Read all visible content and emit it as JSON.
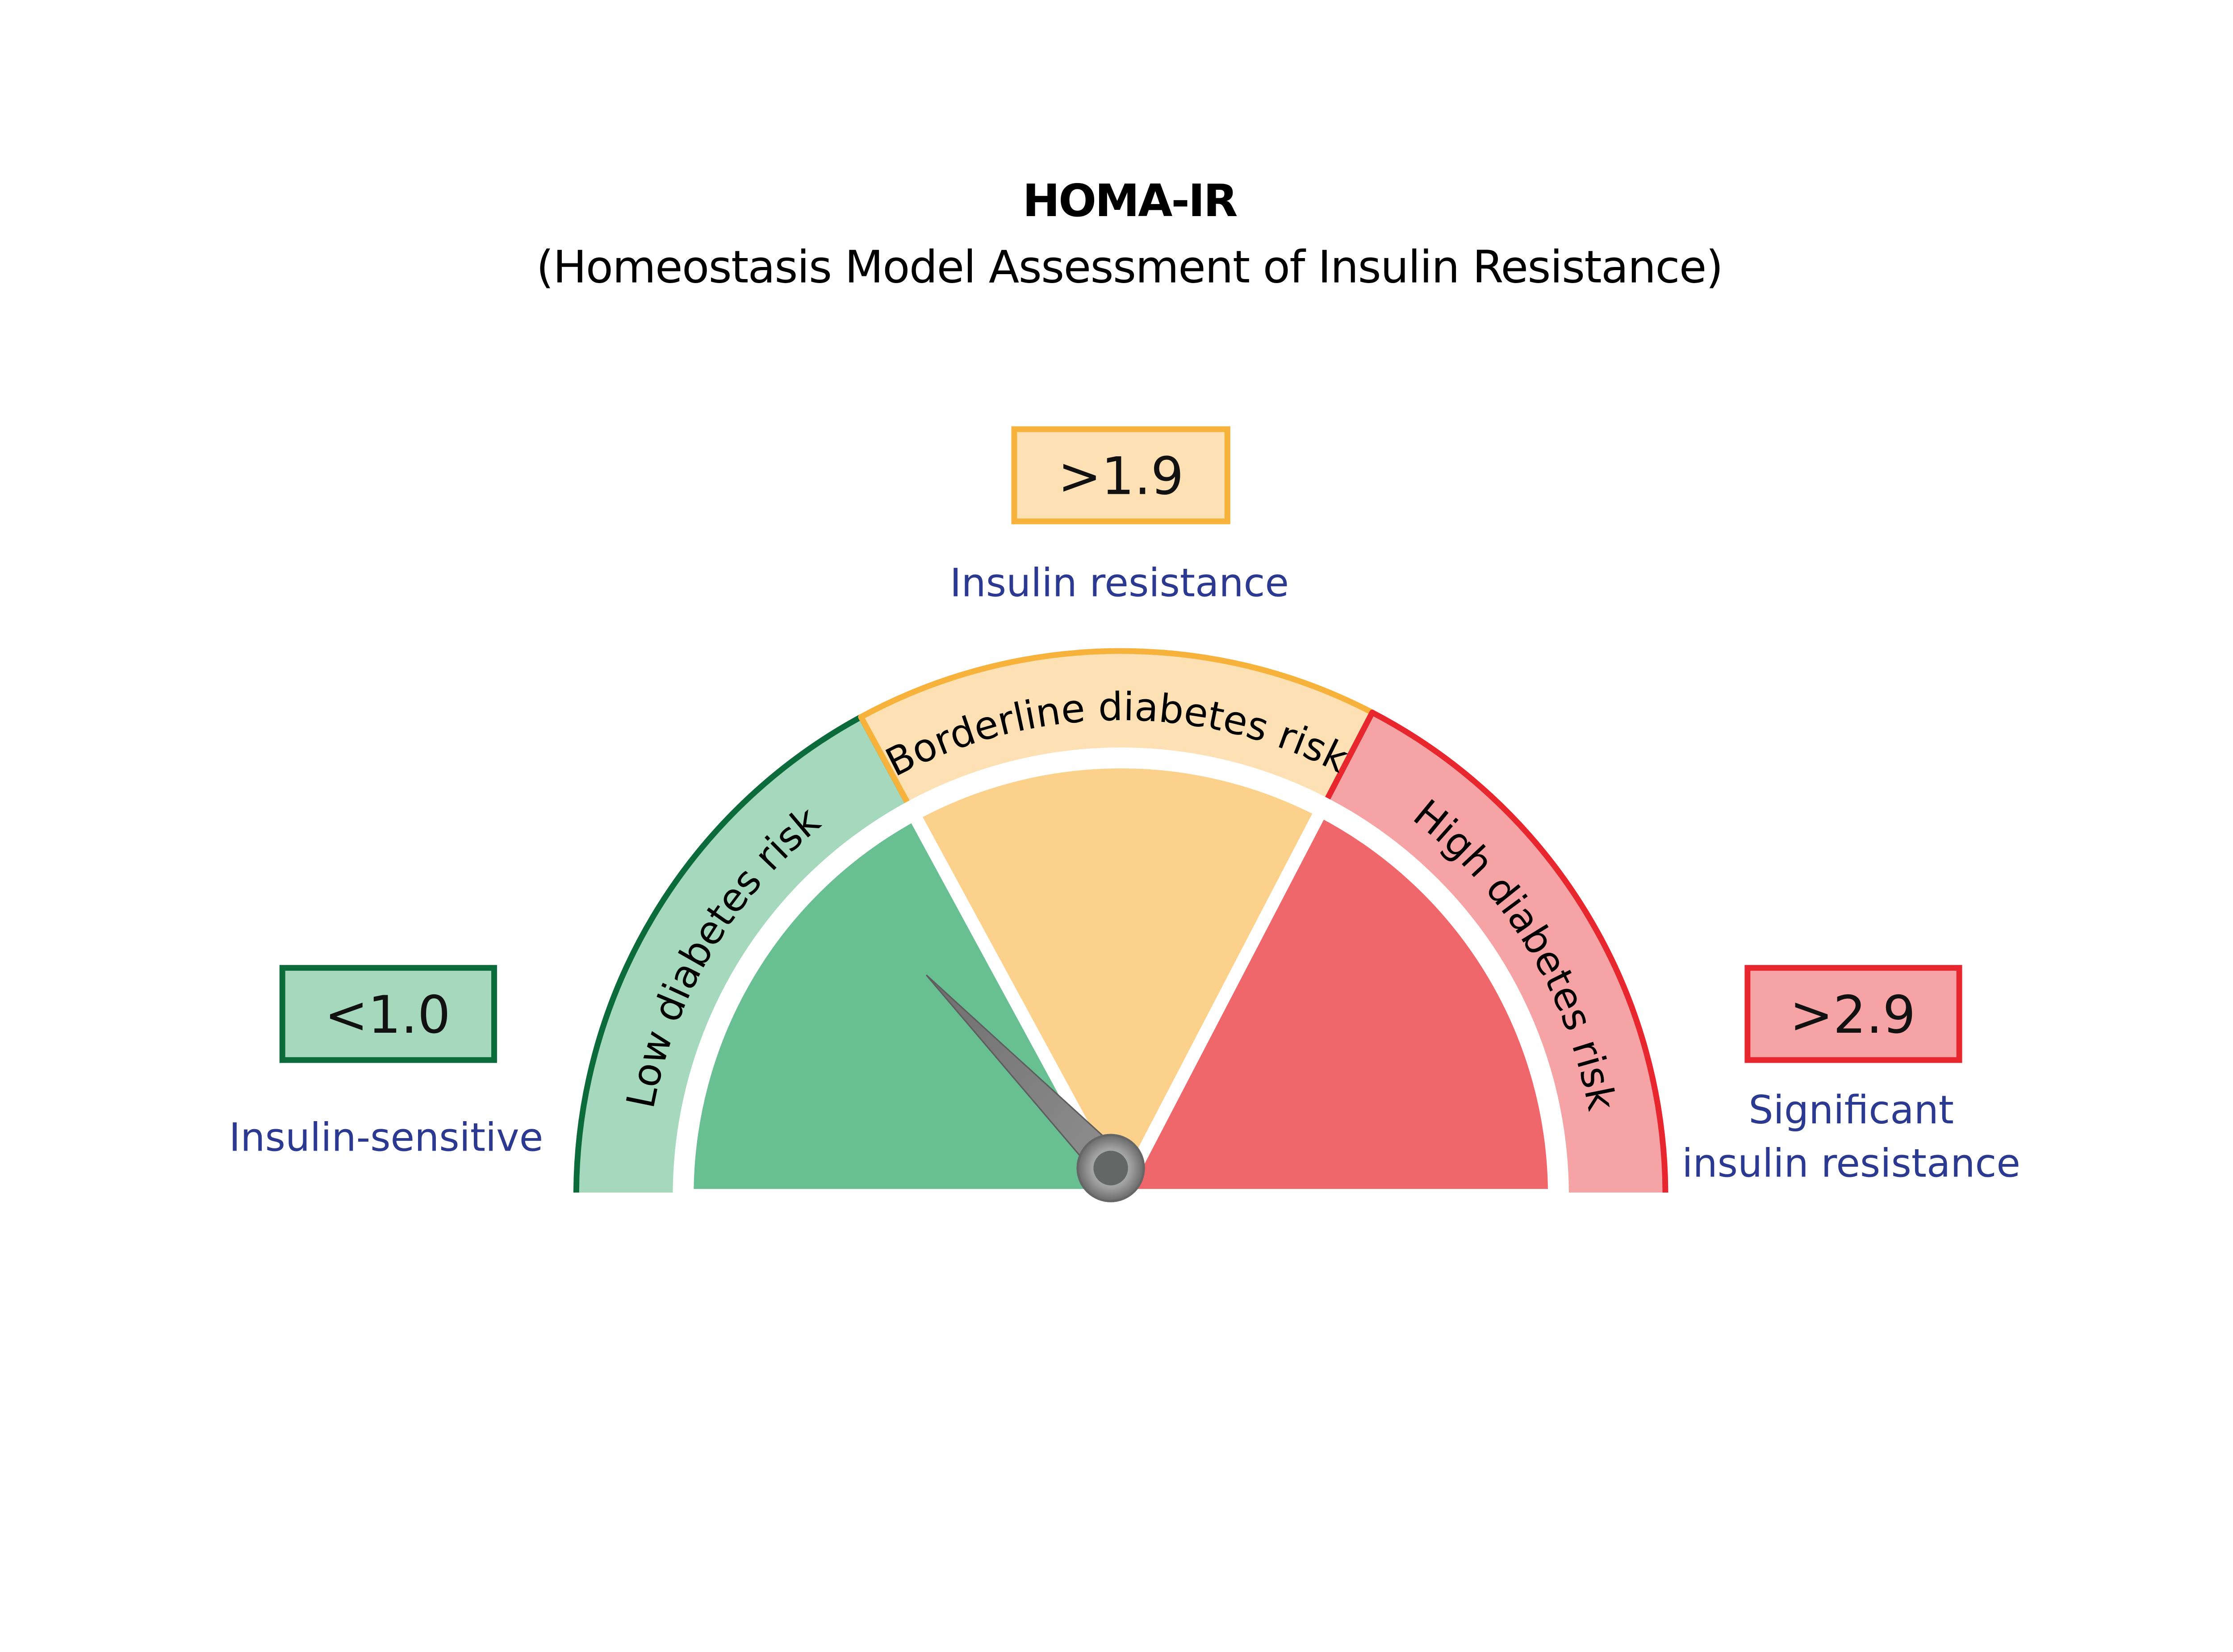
{
  "title": "HOMA-IR",
  "subtitle": "(Homeostasis Model Assessment of Insulin Resistance)",
  "zones": [
    {
      "band_label": "Low diabetes risk",
      "threshold": "<1.0",
      "description": [
        "Insulin-sensitive"
      ],
      "band_color": "#a5d8bc",
      "stroke_color": "#0b6b3a",
      "fill_color": "#68bf91"
    },
    {
      "band_label": "Borderline diabetes risk",
      "threshold": ">1.9",
      "description": [
        "Insulin resistance"
      ],
      "band_color": "#fde0b3",
      "stroke_color": "#f7b23b",
      "fill_color": "#fbd18b"
    },
    {
      "band_label": "High diabetes risk",
      "threshold": ">2.9",
      "description": [
        "Significant",
        "insulin resistance"
      ],
      "band_color": "#f5a3a5",
      "stroke_color": "#e8262d",
      "fill_color": "#f0676b"
    }
  ],
  "label_color": "#2b3990",
  "needle_zone": "Low diabetes risk"
}
